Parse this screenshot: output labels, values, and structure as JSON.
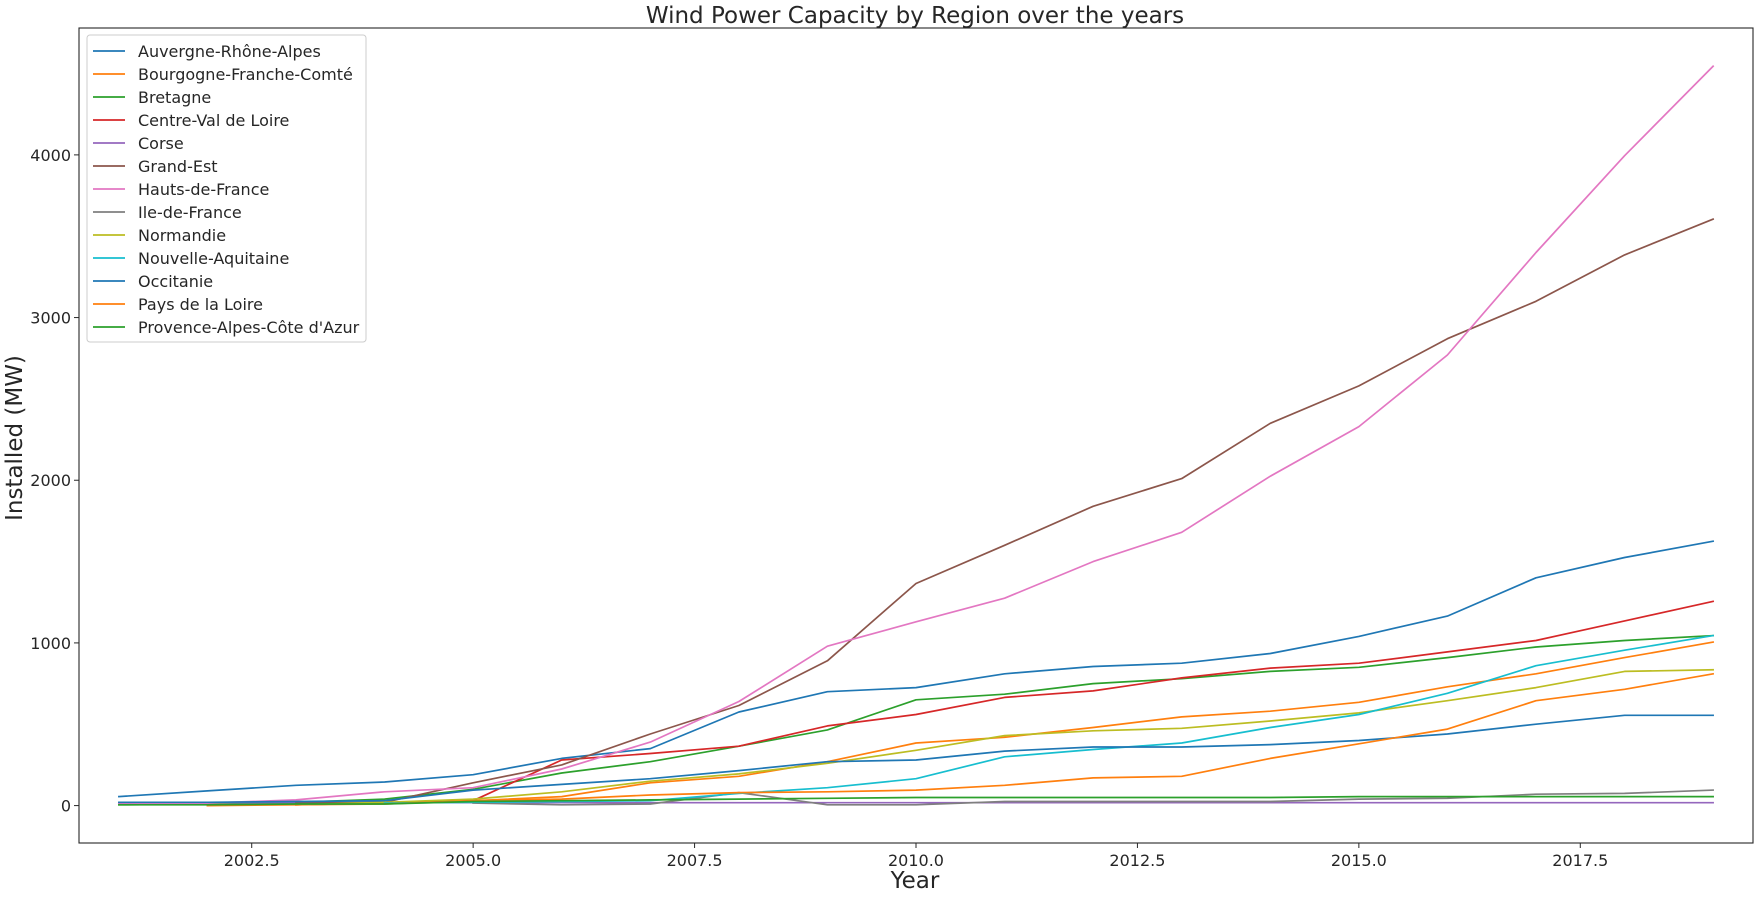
{
  "chart_data": {
    "type": "line",
    "title": "Wind Power Capacity by Region over the years",
    "xlabel": "Year",
    "ylabel": "Installed (MW)",
    "xlim": [
      2000.55,
      2019.45
    ],
    "ylim": [
      -230,
      4780
    ],
    "x_ticks": [
      2002.5,
      2005.0,
      2007.5,
      2010.0,
      2012.5,
      2015.0,
      2017.5
    ],
    "x_tick_labels": [
      "2002.5",
      "2005.0",
      "2007.5",
      "2010.0",
      "2012.5",
      "2015.0",
      "2017.5"
    ],
    "y_ticks": [
      0,
      1000,
      2000,
      3000,
      4000
    ],
    "y_tick_labels": [
      "0",
      "1000",
      "2000",
      "3000",
      "4000"
    ],
    "grid": false,
    "legend_position": "upper-left",
    "series": [
      {
        "name": "Auvergne-Rhône-Alpes",
        "color": "#1f77b4",
        "x": [
          2001,
          2002,
          2003,
          2004,
          2005,
          2006,
          2007,
          2008,
          2009,
          2010,
          2011,
          2012,
          2013,
          2014,
          2015,
          2016,
          2017,
          2018,
          2019
        ],
        "y": [
          55,
          90,
          125,
          145,
          190,
          290,
          350,
          575,
          700,
          725,
          810,
          855,
          875,
          935,
          1040,
          1165,
          1400,
          1525,
          1625
        ]
      },
      {
        "name": "Bourgogne-Franche-Comté",
        "color": "#ff7f0e",
        "x": [
          2002,
          2003,
          2004,
          2005,
          2006,
          2007,
          2008,
          2009,
          2010,
          2011,
          2012,
          2013,
          2014,
          2015,
          2016,
          2017,
          2018,
          2019
        ],
        "y": [
          0,
          5,
          15,
          30,
          55,
          140,
          180,
          270,
          385,
          420,
          480,
          545,
          580,
          635,
          730,
          810,
          910,
          1005
        ]
      },
      {
        "name": "Bretagne",
        "color": "#2ca02c",
        "x": [
          2001,
          2002,
          2003,
          2004,
          2005,
          2006,
          2007,
          2008,
          2009,
          2010,
          2011,
          2012,
          2013,
          2014,
          2015,
          2016,
          2017,
          2018,
          2019
        ],
        "y": [
          5,
          10,
          20,
          40,
          100,
          200,
          270,
          365,
          465,
          650,
          685,
          750,
          780,
          825,
          850,
          910,
          975,
          1015,
          1045
        ]
      },
      {
        "name": "Centre-Val de Loire",
        "color": "#d62728",
        "x": [
          2003,
          2004,
          2005,
          2006,
          2007,
          2008,
          2009,
          2010,
          2011,
          2012,
          2013,
          2014,
          2015,
          2016,
          2017,
          2018,
          2019
        ],
        "y": [
          5,
          15,
          30,
          280,
          320,
          365,
          490,
          560,
          665,
          705,
          785,
          845,
          875,
          945,
          1015,
          1135,
          1255
        ]
      },
      {
        "name": "Corse",
        "color": "#9467bd",
        "x": [
          2001,
          2002,
          2003,
          2004,
          2005,
          2006,
          2007,
          2008,
          2009,
          2010,
          2011,
          2012,
          2013,
          2014,
          2015,
          2016,
          2017,
          2018,
          2019
        ],
        "y": [
          18,
          18,
          18,
          18,
          18,
          18,
          18,
          18,
          18,
          18,
          18,
          18,
          18,
          18,
          18,
          18,
          18,
          18,
          18
        ]
      },
      {
        "name": "Grand-Est",
        "color": "#8c564b",
        "x": [
          2003,
          2004,
          2005,
          2006,
          2007,
          2008,
          2009,
          2010,
          2011,
          2012,
          2013,
          2014,
          2015,
          2016,
          2017,
          2018,
          2019
        ],
        "y": [
          15,
          20,
          140,
          250,
          440,
          615,
          890,
          1365,
          1600,
          1840,
          2010,
          2350,
          2580,
          2870,
          3100,
          3385,
          3605
        ]
      },
      {
        "name": "Hauts-de-France",
        "color": "#e377c2",
        "x": [
          2001,
          2002,
          2003,
          2004,
          2005,
          2006,
          2007,
          2008,
          2009,
          2010,
          2011,
          2012,
          2013,
          2014,
          2015,
          2016,
          2017,
          2018,
          2019
        ],
        "y": [
          10,
          15,
          35,
          85,
          110,
          225,
          390,
          640,
          980,
          1130,
          1275,
          1500,
          1680,
          2025,
          2330,
          2770,
          3400,
          3995,
          4545
        ]
      },
      {
        "name": "Ile-de-France",
        "color": "#7f7f7f",
        "x": [
          2005,
          2006,
          2007,
          2008,
          2009,
          2010,
          2011,
          2012,
          2013,
          2014,
          2015,
          2016,
          2017,
          2018,
          2019
        ],
        "y": [
          15,
          5,
          10,
          80,
          5,
          5,
          25,
          25,
          25,
          25,
          40,
          45,
          70,
          75,
          95
        ]
      },
      {
        "name": "Normandie",
        "color": "#bcbd22",
        "x": [
          2003,
          2004,
          2005,
          2006,
          2007,
          2008,
          2009,
          2010,
          2011,
          2012,
          2013,
          2014,
          2015,
          2016,
          2017,
          2018,
          2019
        ],
        "y": [
          5,
          20,
          40,
          85,
          150,
          195,
          260,
          340,
          430,
          460,
          475,
          520,
          570,
          645,
          725,
          825,
          835
        ]
      },
      {
        "name": "Nouvelle-Aquitaine",
        "color": "#17becf",
        "x": [
          2004,
          2005,
          2006,
          2007,
          2008,
          2009,
          2010,
          2011,
          2012,
          2013,
          2014,
          2015,
          2016,
          2017,
          2018,
          2019
        ],
        "y": [
          15,
          20,
          25,
          30,
          75,
          110,
          165,
          300,
          345,
          385,
          480,
          560,
          690,
          860,
          955,
          1045
        ]
      },
      {
        "name": "Occitanie",
        "color": "#1f77b4",
        "x": [
          2001,
          2002,
          2003,
          2004,
          2005,
          2006,
          2007,
          2008,
          2009,
          2010,
          2011,
          2012,
          2013,
          2014,
          2015,
          2016,
          2017,
          2018,
          2019
        ],
        "y": [
          20,
          20,
          25,
          30,
          95,
          130,
          165,
          215,
          270,
          280,
          335,
          360,
          360,
          375,
          400,
          440,
          500,
          555,
          555
        ]
      },
      {
        "name": "Pays de la Loire",
        "color": "#ff7f0e",
        "x": [
          2003,
          2004,
          2005,
          2006,
          2007,
          2008,
          2009,
          2010,
          2011,
          2012,
          2013,
          2014,
          2015,
          2016,
          2017,
          2018,
          2019
        ],
        "y": [
          5,
          10,
          30,
          40,
          65,
          80,
          85,
          95,
          125,
          170,
          180,
          290,
          380,
          470,
          645,
          715,
          810
        ]
      },
      {
        "name": "Provence-Alpes-Côte d'Azur",
        "color": "#2ca02c",
        "x": [
          2001,
          2002,
          2003,
          2004,
          2005,
          2006,
          2007,
          2008,
          2009,
          2010,
          2011,
          2012,
          2013,
          2014,
          2015,
          2016,
          2017,
          2018,
          2019
        ],
        "y": [
          5,
          5,
          10,
          10,
          25,
          30,
          35,
          40,
          45,
          50,
          50,
          50,
          50,
          50,
          55,
          55,
          55,
          55,
          55
        ]
      }
    ]
  }
}
